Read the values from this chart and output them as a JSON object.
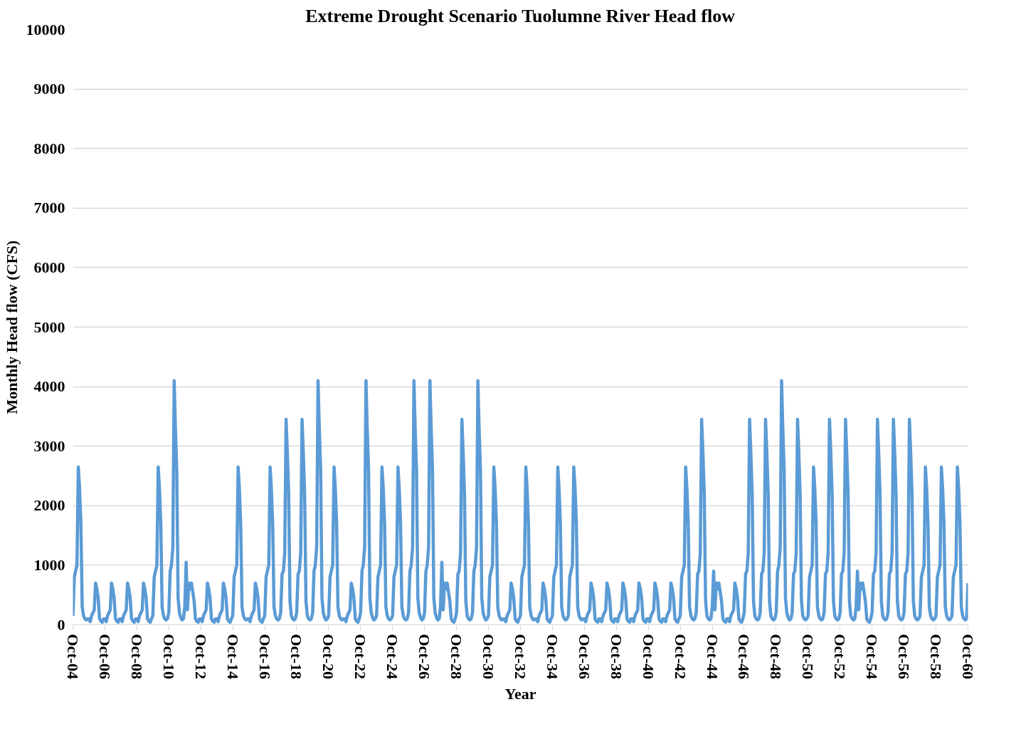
{
  "chart_data": {
    "type": "line",
    "title": "Extreme Drought Scenario Tuolumne River Head flow",
    "xlabel": "Year",
    "ylabel": "Monthly Head flow (CFS)",
    "xlim": [
      "2004-10",
      "2060-10"
    ],
    "ylim": [
      0,
      10000
    ],
    "yticks": [
      0,
      1000,
      2000,
      3000,
      4000,
      5000,
      6000,
      7000,
      8000,
      9000,
      10000
    ],
    "xticks": [
      {
        "value": "2004-10",
        "label": "Oct-04"
      },
      {
        "value": "2006-10",
        "label": "Oct-06"
      },
      {
        "value": "2008-10",
        "label": "Oct-08"
      },
      {
        "value": "2010-10",
        "label": "Oct-10"
      },
      {
        "value": "2012-10",
        "label": "Oct-12"
      },
      {
        "value": "2014-10",
        "label": "Oct-14"
      },
      {
        "value": "2016-10",
        "label": "Oct-16"
      },
      {
        "value": "2018-10",
        "label": "Oct-18"
      },
      {
        "value": "2020-10",
        "label": "Oct-20"
      },
      {
        "value": "2022-10",
        "label": "Oct-22"
      },
      {
        "value": "2024-10",
        "label": "Oct-24"
      },
      {
        "value": "2026-10",
        "label": "Oct-26"
      },
      {
        "value": "2028-10",
        "label": "Oct-28"
      },
      {
        "value": "2030-10",
        "label": "Oct-30"
      },
      {
        "value": "2032-10",
        "label": "Oct-32"
      },
      {
        "value": "2034-10",
        "label": "Oct-34"
      },
      {
        "value": "2036-10",
        "label": "Oct-36"
      },
      {
        "value": "2038-10",
        "label": "Oct-38"
      },
      {
        "value": "2040-10",
        "label": "Oct-40"
      },
      {
        "value": "2042-10",
        "label": "Oct-42"
      },
      {
        "value": "2044-10",
        "label": "Oct-44"
      },
      {
        "value": "2046-10",
        "label": "Oct-46"
      },
      {
        "value": "2048-10",
        "label": "Oct-48"
      },
      {
        "value": "2050-10",
        "label": "Oct-50"
      },
      {
        "value": "2052-10",
        "label": "Oct-52"
      },
      {
        "value": "2054-10",
        "label": "Oct-54"
      },
      {
        "value": "2056-10",
        "label": "Oct-56"
      },
      {
        "value": "2058-10",
        "label": "Oct-58"
      },
      {
        "value": "2060-10",
        "label": "Oct-60"
      }
    ],
    "grid": "y",
    "marker": "none",
    "line_style": "solid",
    "x": [
      "2004-10",
      "2004-11",
      "2004-12",
      "2005-01",
      "2005-02",
      "2005-03",
      "2005-04",
      "2005-05",
      "2005-06",
      "2005-07",
      "2005-08",
      "2005-09",
      "2005-10",
      "2005-11",
      "2005-12",
      "2006-01",
      "2006-02",
      "2006-03",
      "2006-04",
      "2006-05",
      "2006-06",
      "2006-07",
      "2006-08",
      "2006-09",
      "2006-10",
      "2006-11",
      "2006-12",
      "2007-01",
      "2007-02",
      "2007-03",
      "2007-04",
      "2007-05",
      "2007-06",
      "2007-07",
      "2007-08",
      "2007-09",
      "2007-10",
      "2007-11",
      "2007-12",
      "2008-01",
      "2008-02",
      "2008-03",
      "2008-04",
      "2008-05",
      "2008-06",
      "2008-07",
      "2008-08",
      "2008-09",
      "2008-10",
      "2008-11",
      "2008-12",
      "2009-01",
      "2009-02",
      "2009-03",
      "2009-04",
      "2009-05",
      "2009-06",
      "2009-07",
      "2009-08",
      "2009-09",
      "2009-10",
      "2009-11",
      "2009-12",
      "2010-01",
      "2010-02",
      "2010-03",
      "2010-04",
      "2010-05",
      "2010-06",
      "2010-07",
      "2010-08",
      "2010-09",
      "2010-10",
      "2010-11",
      "2010-12",
      "2011-01",
      "2011-02",
      "2011-03",
      "2011-04",
      "2011-05",
      "2011-06",
      "2011-07",
      "2011-08",
      "2011-09",
      "2011-10",
      "2011-11",
      "2011-12",
      "2012-01",
      "2012-02",
      "2012-03",
      "2012-04",
      "2012-05",
      "2012-06",
      "2012-07",
      "2012-08",
      "2012-09",
      "2012-10",
      "2012-11",
      "2012-12",
      "2013-01",
      "2013-02",
      "2013-03",
      "2013-04",
      "2013-05",
      "2013-06",
      "2013-07",
      "2013-08",
      "2013-09",
      "2013-10",
      "2013-11",
      "2013-12",
      "2014-01",
      "2014-02",
      "2014-03",
      "2014-04",
      "2014-05",
      "2014-06",
      "2014-07",
      "2014-08",
      "2014-09",
      "2014-10",
      "2014-11",
      "2014-12",
      "2015-01",
      "2015-02",
      "2015-03",
      "2015-04",
      "2015-05",
      "2015-06",
      "2015-07",
      "2015-08",
      "2015-09",
      "2015-10",
      "2015-11",
      "2015-12",
      "2016-01",
      "2016-02",
      "2016-03",
      "2016-04",
      "2016-05",
      "2016-06",
      "2016-07",
      "2016-08",
      "2016-09",
      "2016-10",
      "2016-11",
      "2016-12",
      "2017-01",
      "2017-02",
      "2017-03",
      "2017-04",
      "2017-05",
      "2017-06",
      "2017-07",
      "2017-08",
      "2017-09",
      "2017-10",
      "2017-11",
      "2017-12",
      "2018-01",
      "2018-02",
      "2018-03",
      "2018-04",
      "2018-05",
      "2018-06",
      "2018-07",
      "2018-08",
      "2018-09",
      "2018-10",
      "2018-11",
      "2018-12",
      "2019-01",
      "2019-02",
      "2019-03",
      "2019-04",
      "2019-05",
      "2019-06",
      "2019-07",
      "2019-08",
      "2019-09",
      "2019-10",
      "2019-11",
      "2019-12",
      "2020-01",
      "2020-02",
      "2020-03",
      "2020-04",
      "2020-05",
      "2020-06",
      "2020-07",
      "2020-08",
      "2020-09",
      "2020-10",
      "2020-11",
      "2020-12",
      "2021-01",
      "2021-02",
      "2021-03",
      "2021-04",
      "2021-05",
      "2021-06",
      "2021-07",
      "2021-08",
      "2021-09",
      "2021-10",
      "2021-11",
      "2021-12",
      "2022-01",
      "2022-02",
      "2022-03",
      "2022-04",
      "2022-05",
      "2022-06",
      "2022-07",
      "2022-08",
      "2022-09",
      "2022-10",
      "2022-11",
      "2022-12",
      "2023-01",
      "2023-02",
      "2023-03",
      "2023-04",
      "2023-05",
      "2023-06",
      "2023-07",
      "2023-08",
      "2023-09",
      "2023-10",
      "2023-11",
      "2023-12",
      "2024-01",
      "2024-02",
      "2024-03",
      "2024-04",
      "2024-05",
      "2024-06",
      "2024-07",
      "2024-08",
      "2024-09",
      "2024-10",
      "2024-11",
      "2024-12",
      "2025-01",
      "2025-02",
      "2025-03",
      "2025-04",
      "2025-05",
      "2025-06",
      "2025-07",
      "2025-08",
      "2025-09",
      "2025-10",
      "2025-11",
      "2025-12",
      "2026-01",
      "2026-02",
      "2026-03",
      "2026-04",
      "2026-05",
      "2026-06",
      "2026-07",
      "2026-08",
      "2026-09",
      "2026-10",
      "2026-11",
      "2026-12",
      "2027-01",
      "2027-02",
      "2027-03",
      "2027-04",
      "2027-05",
      "2027-06",
      "2027-07",
      "2027-08",
      "2027-09",
      "2027-10",
      "2027-11",
      "2027-12",
      "2028-01",
      "2028-02",
      "2028-03",
      "2028-04",
      "2028-05",
      "2028-06",
      "2028-07",
      "2028-08",
      "2028-09",
      "2028-10",
      "2028-11",
      "2028-12",
      "2029-01",
      "2029-02",
      "2029-03",
      "2029-04",
      "2029-05",
      "2029-06",
      "2029-07",
      "2029-08",
      "2029-09",
      "2029-10",
      "2029-11",
      "2029-12",
      "2030-01",
      "2030-02",
      "2030-03",
      "2030-04",
      "2030-05",
      "2030-06",
      "2030-07",
      "2030-08",
      "2030-09",
      "2030-10",
      "2030-11",
      "2030-12",
      "2031-01",
      "2031-02",
      "2031-03",
      "2031-04",
      "2031-05",
      "2031-06",
      "2031-07",
      "2031-08",
      "2031-09",
      "2031-10",
      "2031-11",
      "2031-12",
      "2032-01",
      "2032-02",
      "2032-03",
      "2032-04",
      "2032-05",
      "2032-06",
      "2032-07",
      "2032-08",
      "2032-09",
      "2032-10",
      "2032-11",
      "2032-12",
      "2033-01",
      "2033-02",
      "2033-03",
      "2033-04",
      "2033-05",
      "2033-06",
      "2033-07",
      "2033-08",
      "2033-09",
      "2033-10",
      "2033-11",
      "2033-12",
      "2034-01",
      "2034-02",
      "2034-03",
      "2034-04",
      "2034-05",
      "2034-06",
      "2034-07",
      "2034-08",
      "2034-09",
      "2034-10",
      "2034-11",
      "2034-12",
      "2035-01",
      "2035-02",
      "2035-03",
      "2035-04",
      "2035-05",
      "2035-06",
      "2035-07",
      "2035-08",
      "2035-09",
      "2035-10",
      "2035-11",
      "2035-12",
      "2036-01",
      "2036-02",
      "2036-03",
      "2036-04",
      "2036-05",
      "2036-06",
      "2036-07",
      "2036-08",
      "2036-09",
      "2036-10",
      "2036-11",
      "2036-12",
      "2037-01",
      "2037-02",
      "2037-03",
      "2037-04",
      "2037-05",
      "2037-06",
      "2037-07",
      "2037-08",
      "2037-09",
      "2037-10",
      "2037-11",
      "2037-12",
      "2038-01",
      "2038-02",
      "2038-03",
      "2038-04",
      "2038-05",
      "2038-06",
      "2038-07",
      "2038-08",
      "2038-09",
      "2038-10",
      "2038-11",
      "2038-12",
      "2039-01",
      "2039-02",
      "2039-03",
      "2039-04",
      "2039-05",
      "2039-06",
      "2039-07",
      "2039-08",
      "2039-09",
      "2039-10",
      "2039-11",
      "2039-12",
      "2040-01",
      "2040-02",
      "2040-03",
      "2040-04",
      "2040-05",
      "2040-06",
      "2040-07",
      "2040-08",
      "2040-09",
      "2040-10",
      "2040-11",
      "2040-12",
      "2041-01",
      "2041-02",
      "2041-03",
      "2041-04",
      "2041-05",
      "2041-06",
      "2041-07",
      "2041-08",
      "2041-09",
      "2041-10",
      "2041-11",
      "2041-12",
      "2042-01",
      "2042-02",
      "2042-03",
      "2042-04",
      "2042-05",
      "2042-06",
      "2042-07",
      "2042-08",
      "2042-09",
      "2042-10",
      "2042-11",
      "2042-12",
      "2043-01",
      "2043-02",
      "2043-03",
      "2043-04",
      "2043-05",
      "2043-06",
      "2043-07",
      "2043-08",
      "2043-09",
      "2043-10",
      "2043-11",
      "2043-12",
      "2044-01",
      "2044-02",
      "2044-03",
      "2044-04",
      "2044-05",
      "2044-06",
      "2044-07",
      "2044-08",
      "2044-09",
      "2044-10",
      "2044-11",
      "2044-12",
      "2045-01",
      "2045-02",
      "2045-03",
      "2045-04",
      "2045-05",
      "2045-06",
      "2045-07",
      "2045-08",
      "2045-09",
      "2045-10",
      "2045-11",
      "2045-12",
      "2046-01",
      "2046-02",
      "2046-03",
      "2046-04",
      "2046-05",
      "2046-06",
      "2046-07",
      "2046-08",
      "2046-09",
      "2046-10",
      "2046-11",
      "2046-12",
      "2047-01",
      "2047-02",
      "2047-03",
      "2047-04",
      "2047-05",
      "2047-06",
      "2047-07",
      "2047-08",
      "2047-09",
      "2047-10",
      "2047-11",
      "2047-12",
      "2048-01",
      "2048-02",
      "2048-03",
      "2048-04",
      "2048-05",
      "2048-06",
      "2048-07",
      "2048-08",
      "2048-09",
      "2048-10",
      "2048-11",
      "2048-12",
      "2049-01",
      "2049-02",
      "2049-03",
      "2049-04",
      "2049-05",
      "2049-06",
      "2049-07",
      "2049-08",
      "2049-09",
      "2049-10",
      "2049-11",
      "2049-12",
      "2050-01",
      "2050-02",
      "2050-03",
      "2050-04",
      "2050-05",
      "2050-06",
      "2050-07",
      "2050-08",
      "2050-09",
      "2050-10",
      "2050-11",
      "2050-12",
      "2051-01",
      "2051-02",
      "2051-03",
      "2051-04",
      "2051-05",
      "2051-06",
      "2051-07",
      "2051-08",
      "2051-09",
      "2051-10",
      "2051-11",
      "2051-12",
      "2052-01",
      "2052-02",
      "2052-03",
      "2052-04",
      "2052-05",
      "2052-06",
      "2052-07",
      "2052-08",
      "2052-09",
      "2052-10",
      "2052-11",
      "2052-12",
      "2053-01",
      "2053-02",
      "2053-03",
      "2053-04",
      "2053-05",
      "2053-06",
      "2053-07",
      "2053-08",
      "2053-09",
      "2053-10",
      "2053-11",
      "2053-12",
      "2054-01",
      "2054-02",
      "2054-03",
      "2054-04",
      "2054-05",
      "2054-06",
      "2054-07",
      "2054-08",
      "2054-09",
      "2054-10",
      "2054-11",
      "2054-12",
      "2055-01",
      "2055-02",
      "2055-03",
      "2055-04",
      "2055-05",
      "2055-06",
      "2055-07",
      "2055-08",
      "2055-09",
      "2055-10",
      "2055-11",
      "2055-12",
      "2056-01",
      "2056-02",
      "2056-03",
      "2056-04",
      "2056-05",
      "2056-06",
      "2056-07",
      "2056-08",
      "2056-09",
      "2056-10",
      "2056-11",
      "2056-12",
      "2057-01",
      "2057-02",
      "2057-03",
      "2057-04",
      "2057-05",
      "2057-06",
      "2057-07",
      "2057-08",
      "2057-09",
      "2057-10",
      "2057-11",
      "2057-12",
      "2058-01",
      "2058-02",
      "2058-03",
      "2058-04",
      "2058-05",
      "2058-06",
      "2058-07",
      "2058-08",
      "2058-09",
      "2058-10",
      "2058-11",
      "2058-12",
      "2059-01",
      "2059-02",
      "2059-03",
      "2059-04",
      "2059-05",
      "2059-06",
      "2059-07",
      "2059-08",
      "2059-09",
      "2059-10",
      "2059-11",
      "2059-12",
      "2060-01",
      "2060-02",
      "2060-03",
      "2060-04",
      "2060-05",
      "2060-06",
      "2060-07",
      "2060-08",
      "2060-09",
      "2060-10"
    ],
    "series": [
      {
        "color": "#5b9bd5",
        "values": [
          150,
          800,
          900,
          1000,
          2650,
          2300,
          1700,
          300,
          150,
          100,
          80,
          100,
          100,
          50,
          150,
          200,
          250,
          700,
          600,
          450,
          100,
          60,
          40,
          100,
          100,
          50,
          150,
          200,
          250,
          700,
          600,
          450,
          100,
          60,
          40,
          100,
          100,
          50,
          150,
          200,
          250,
          700,
          600,
          450,
          100,
          60,
          40,
          100,
          100,
          50,
          150,
          200,
          250,
          700,
          600,
          450,
          100,
          60,
          40,
          100,
          150,
          800,
          900,
          1000,
          2650,
          2300,
          1700,
          300,
          150,
          100,
          80,
          100,
          200,
          900,
          1000,
          1300,
          4100,
          3300,
          2600,
          450,
          200,
          120,
          80,
          100,
          300,
          1050,
          250,
          700,
          600,
          700,
          550,
          400,
          100,
          60,
          40,
          100,
          100,
          50,
          150,
          200,
          250,
          700,
          600,
          450,
          100,
          60,
          40,
          100,
          100,
          50,
          150,
          200,
          250,
          700,
          600,
          450,
          100,
          60,
          40,
          100,
          150,
          800,
          900,
          1000,
          2650,
          2300,
          1700,
          300,
          150,
          100,
          80,
          100,
          100,
          50,
          150,
          200,
          250,
          700,
          600,
          450,
          100,
          60,
          40,
          100,
          150,
          800,
          900,
          1000,
          2650,
          2300,
          1700,
          300,
          150,
          100,
          80,
          100,
          200,
          850,
          900,
          1200,
          3450,
          2900,
          2200,
          400,
          150,
          100,
          80,
          100,
          200,
          850,
          900,
          1200,
          3450,
          2900,
          2200,
          400,
          150,
          100,
          80,
          100,
          200,
          900,
          1000,
          1300,
          4100,
          3300,
          2600,
          450,
          200,
          120,
          80,
          100,
          150,
          800,
          900,
          1000,
          2650,
          2300,
          1700,
          300,
          150,
          100,
          80,
          100,
          100,
          50,
          150,
          200,
          250,
          700,
          600,
          450,
          100,
          60,
          40,
          100,
          200,
          900,
          1000,
          1300,
          4100,
          3300,
          2600,
          450,
          200,
          120,
          80,
          100,
          150,
          800,
          900,
          1000,
          2650,
          2300,
          1700,
          300,
          150,
          100,
          80,
          100,
          150,
          800,
          900,
          1000,
          2650,
          2300,
          1700,
          300,
          150,
          100,
          80,
          100,
          200,
          900,
          1000,
          1300,
          4100,
          3300,
          2600,
          450,
          200,
          120,
          80,
          100,
          200,
          900,
          1000,
          1300,
          4100,
          3300,
          2600,
          450,
          200,
          120,
          80,
          100,
          300,
          1050,
          250,
          700,
          600,
          700,
          550,
          400,
          100,
          60,
          40,
          100,
          200,
          850,
          900,
          1200,
          3450,
          2900,
          2200,
          400,
          150,
          100,
          80,
          100,
          200,
          900,
          1000,
          1300,
          4100,
          3300,
          2600,
          450,
          200,
          120,
          80,
          100,
          150,
          800,
          900,
          1000,
          2650,
          2300,
          1700,
          300,
          150,
          100,
          80,
          100,
          100,
          50,
          150,
          200,
          250,
          700,
          600,
          450,
          100,
          60,
          40,
          100,
          150,
          800,
          900,
          1000,
          2650,
          2300,
          1700,
          300,
          150,
          100,
          80,
          100,
          100,
          50,
          150,
          200,
          250,
          700,
          600,
          450,
          100,
          60,
          40,
          100,
          150,
          800,
          900,
          1000,
          2650,
          2300,
          1700,
          300,
          150,
          100,
          80,
          100,
          150,
          800,
          900,
          1000,
          2650,
          2300,
          1700,
          300,
          150,
          100,
          80,
          100,
          100,
          50,
          150,
          200,
          250,
          700,
          600,
          450,
          100,
          60,
          40,
          100,
          100,
          50,
          150,
          200,
          250,
          700,
          600,
          450,
          100,
          60,
          40,
          100,
          100,
          50,
          150,
          200,
          250,
          700,
          600,
          450,
          100,
          60,
          40,
          100,
          100,
          50,
          150,
          200,
          250,
          700,
          600,
          450,
          100,
          60,
          40,
          100,
          100,
          50,
          150,
          200,
          250,
          700,
          600,
          450,
          100,
          60,
          40,
          100,
          100,
          50,
          150,
          200,
          250,
          700,
          600,
          450,
          100,
          60,
          40,
          100,
          150,
          800,
          900,
          1000,
          2650,
          2300,
          1700,
          300,
          150,
          100,
          80,
          100,
          200,
          850,
          900,
          1200,
          3450,
          2900,
          2200,
          400,
          150,
          100,
          80,
          100,
          300,
          900,
          250,
          700,
          600,
          700,
          550,
          400,
          100,
          60,
          40,
          100,
          100,
          50,
          150,
          200,
          250,
          700,
          600,
          450,
          100,
          60,
          40,
          100,
          200,
          850,
          900,
          1200,
          3450,
          2900,
          2200,
          400,
          150,
          100,
          80,
          100,
          200,
          850,
          900,
          1200,
          3450,
          2900,
          2200,
          400,
          150,
          100,
          80,
          100,
          200,
          900,
          1000,
          1300,
          4100,
          3300,
          2600,
          450,
          200,
          120,
          80,
          100,
          200,
          850,
          900,
          1200,
          3450,
          2900,
          2200,
          400,
          150,
          100,
          80,
          100,
          150,
          800,
          900,
          1000,
          2650,
          2300,
          1700,
          300,
          150,
          100,
          80,
          100,
          200,
          850,
          900,
          1200,
          3450,
          2900,
          2200,
          400,
          150,
          100,
          80,
          100,
          200,
          850,
          900,
          1200,
          3450,
          2900,
          2200,
          400,
          150,
          100,
          80,
          100,
          300,
          900,
          250,
          700,
          600,
          700,
          550,
          400,
          100,
          60,
          40,
          100,
          200,
          850,
          900,
          1200,
          3450,
          2900,
          2200,
          400,
          150,
          100,
          80,
          100,
          200,
          850,
          900,
          1200,
          3450,
          2900,
          2200,
          400,
          150,
          100,
          80,
          100,
          200,
          850,
          900,
          1200,
          3450,
          2900,
          2200,
          400,
          150,
          100,
          80,
          100,
          150,
          800,
          900,
          1000,
          2650,
          2300,
          1700,
          300,
          150,
          100,
          80,
          100,
          150,
          800,
          900,
          1000,
          2650,
          2300,
          1700,
          300,
          150,
          100,
          80,
          100,
          150,
          800,
          900,
          1000,
          2650,
          2300,
          1700,
          300,
          150,
          100,
          80,
          100,
          700
        ]
      }
    ]
  }
}
